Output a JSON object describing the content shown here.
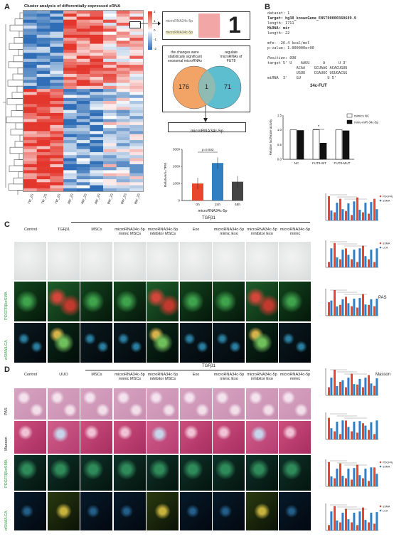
{
  "panels": {
    "a": "A",
    "b": "B",
    "c": "C",
    "d": "D"
  },
  "panelA": {
    "heatmap_title": "Cluster analysis of differentially expressed eRNA",
    "sample_labels": [
      "7W_2S",
      "7W_2S",
      "7W_2S",
      "AW_2S",
      "AW_2S",
      "AW_2S",
      "BW_2S",
      "BW_2S",
      "BW_2S"
    ],
    "zoom_box_number": "1",
    "zoom_labels": [
      "microRNA34c-5p",
      "microRNA34c-5p"
    ],
    "colorbar_ticks": [
      "2",
      "1",
      "0",
      "-1",
      "-2"
    ],
    "venn": {
      "left_text": "the changes were statistically significant exosomal microRNAs",
      "right_text": "regulate microRNAs of FUT8",
      "left_count": "176",
      "overlap_count": "1",
      "right_count": "71",
      "result_label": "microRNA34c-5p"
    },
    "bar": {
      "ylabel": "Relative/n=TPM",
      "xlabel": "microRNA34c-5p",
      "pvalue": "p=0.003"
    }
  },
  "panelB": {
    "seq_lines": [
      "dataset: 1",
      "Target: hg38_knownGene_ENST00000360689.9",
      "length: 1711",
      "MiRNA: mir",
      "length: 22",
      "",
      "mfe: -26.4 kcal/mol",
      "p-value: 1.000000e+00",
      "",
      "Position: 936",
      "target 5' U    AAUU      A      U 3'",
      "             ACAA    GCUAAG ACACUGUU",
      "             UGUU    CGAUUC UGUGACGG",
      "miRNA  3'    GU            U 5'"
    ],
    "seq_title": "34c-FUT",
    "chart_title_ylabel": "Relative luciferase activity",
    "legend": [
      "mimics NC",
      "mmu-miR-34c-5p"
    ]
  },
  "panelC": {
    "top_group_label": "TGFβ1",
    "columns": [
      "Control",
      "TGFβ1",
      "MSCs",
      "microRNA34c-5p mimic MSCs",
      "microRNA34c-5p inhibitor MSCs",
      "Exo",
      "microRNA34c-5p mimic Exo",
      "microRNA34c-5p inhibitor Exo",
      "microRNA34c-5p mimic"
    ],
    "rows": [
      "PDGFRβ/αSMA",
      "αSMA/LCA"
    ],
    "side_label": "PAS"
  },
  "panelD": {
    "top_group_label": "TGFβ1",
    "columns": [
      "Control",
      "UUO",
      "MSCs",
      "microRNA34c-5p mimic MSCs",
      "microRNA34c-5p inhibitor MSCs",
      "Exo",
      "microRNA34c-5p mimic Exo",
      "microRNA34c-5p inhibitor Exo",
      "microRNA34c-5p mimic"
    ],
    "rows": [
      "PAS",
      "Masson",
      "PDGFRβ/αSMA",
      "αSMA/LCA"
    ],
    "side_label": "Masson"
  },
  "right_charts": {
    "legend1": [
      "PDGFRβ",
      "αSMA"
    ],
    "legend2": [
      "αSMA",
      "LCA"
    ]
  },
  "chart_data": [
    {
      "type": "bar",
      "categories": [
        "0h",
        "24h",
        "48h"
      ],
      "values": [
        1000,
        2200,
        1100
      ],
      "title": "",
      "xlabel": "microRNA34c-5p",
      "ylabel": "Relative/n=TPM",
      "ylim": [
        0,
        3000
      ],
      "colors": [
        "#e8472b",
        "#2f7fc1",
        "#444444"
      ]
    },
    {
      "type": "bar",
      "categories": [
        "NC",
        "FUT8-WT",
        "FUT8-MUT"
      ],
      "series": [
        {
          "name": "mimics NC",
          "values": [
            1.0,
            1.0,
            1.0
          ]
        },
        {
          "name": "mmu-miR-34c-5p",
          "values": [
            0.98,
            0.55,
            0.97
          ]
        }
      ],
      "ylabel": "Relative luciferase activity",
      "ylim": [
        0,
        1.5
      ]
    }
  ]
}
